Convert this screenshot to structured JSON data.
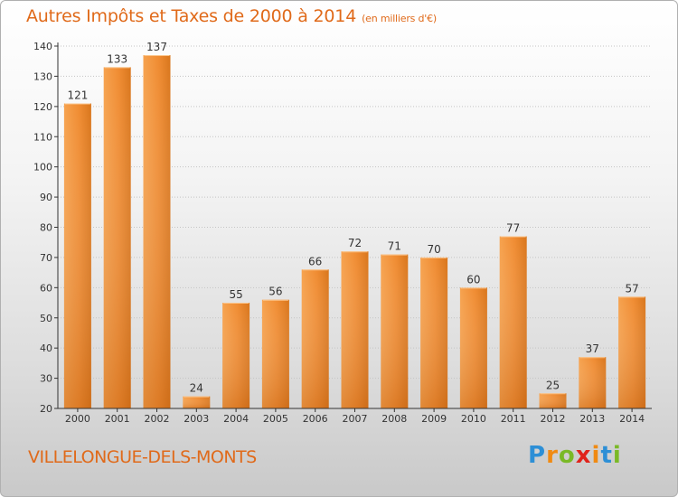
{
  "header": {
    "title": "Autres Impôts et Taxes de 2000 à 2014",
    "unit": "(en milliers d'€)"
  },
  "footer": {
    "commune": "VILLELONGUE-DELS-MONTS",
    "logo_letters": [
      "P",
      "r",
      "o",
      "x",
      "i",
      "t",
      "i"
    ]
  },
  "colors": {
    "title": "#e06a1a",
    "bar_light": "#f6a24e",
    "bar_dark": "#d9761c",
    "axis": "#333333"
  },
  "chart_data": {
    "type": "bar",
    "title": "Autres Impôts et Taxes de 2000 à 2014",
    "categories": [
      "2000",
      "2001",
      "2002",
      "2003",
      "2004",
      "2005",
      "2006",
      "2007",
      "2008",
      "2009",
      "2010",
      "2011",
      "2012",
      "2013",
      "2014"
    ],
    "values": [
      121,
      133,
      137,
      24,
      55,
      56,
      66,
      72,
      71,
      70,
      60,
      77,
      25,
      37,
      57
    ],
    "ylim": [
      20,
      140
    ],
    "yticks": [
      20,
      30,
      40,
      50,
      60,
      70,
      80,
      90,
      100,
      110,
      120,
      130,
      140
    ],
    "grid": true,
    "data_labels": true
  }
}
